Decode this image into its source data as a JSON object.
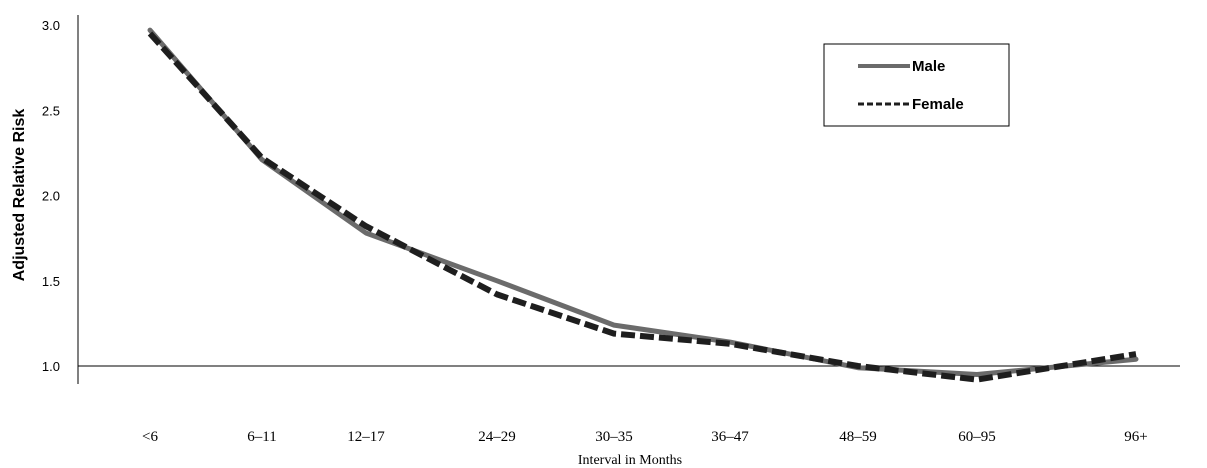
{
  "chart_data": {
    "type": "line",
    "title": "",
    "xlabel": "Interval in Months",
    "ylabel": "Adjusted Relative Risk",
    "categories": [
      "<6",
      "6–11",
      "12–17",
      "24–29",
      "30–35",
      "36–47",
      "48–59",
      "60–95",
      "96+"
    ],
    "y_ticks": [
      "1.0",
      "1.5",
      "2.0",
      "2.5",
      "3.0"
    ],
    "ylim": [
      1.0,
      3.0
    ],
    "x_axis_crosses_at": 1.0,
    "grid": false,
    "legend_position": "top-right",
    "series": [
      {
        "name": "Male",
        "style": "solid",
        "color": "#6b6b6b",
        "points": [
          {
            "x": "<6",
            "y": 2.97
          },
          {
            "x": "6–11",
            "y": 2.21
          },
          {
            "x": "12–17",
            "y": 1.78
          },
          {
            "x": "24–29",
            "y": 1.5
          },
          {
            "x": "30–35",
            "y": 1.24
          },
          {
            "x": "36–47",
            "y": 1.14
          },
          {
            "x": "48–59",
            "y": 0.99
          },
          {
            "x": "60–95",
            "y": 0.95
          },
          {
            "x": "96+",
            "y": 1.04
          }
        ]
      },
      {
        "name": "Female",
        "style": "dashed",
        "color": "#1e1e1e",
        "points": [
          {
            "x": "<6",
            "y": 2.95
          },
          {
            "x": "6–11",
            "y": 2.22
          },
          {
            "x": "12–17",
            "y": 1.82
          },
          {
            "x": "24–29",
            "y": 1.42
          },
          {
            "x": "30–35",
            "y": 1.19
          },
          {
            "x": "36–47",
            "y": 1.13
          },
          {
            "x": "48–59",
            "y": 1.0
          },
          {
            "x": "60–95",
            "y": 0.92
          },
          {
            "x": "96+",
            "y": 1.07
          }
        ]
      }
    ]
  }
}
